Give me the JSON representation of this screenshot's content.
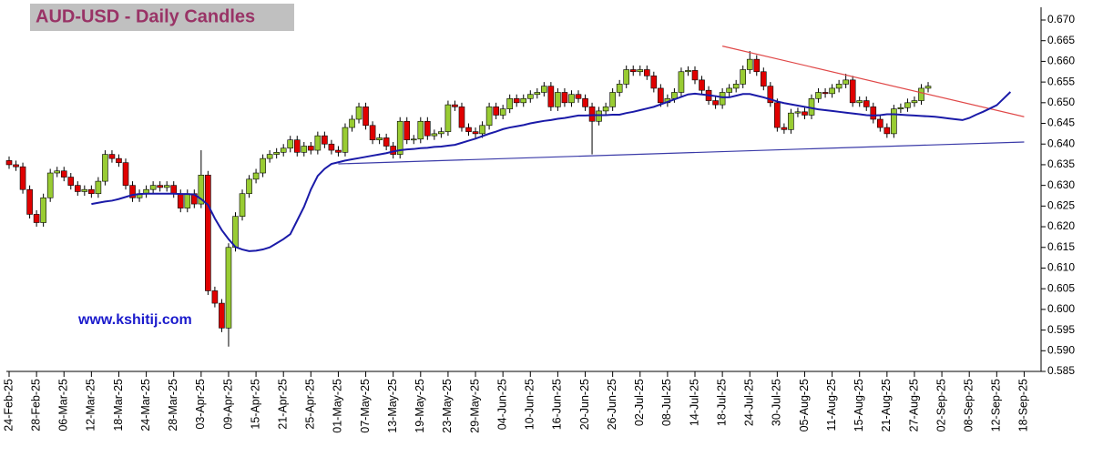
{
  "chart_data": {
    "type": "candlestick",
    "title": "AUD-USD - Daily Candles",
    "watermark": "www.kshitij.com",
    "categories": [
      "24-Feb-25",
      null,
      null,
      null,
      "28-Feb-25",
      null,
      null,
      null,
      "06-Mar-25",
      null,
      null,
      null,
      "12-Mar-25",
      null,
      null,
      null,
      "18-Mar-25",
      null,
      null,
      null,
      "24-Mar-25",
      null,
      null,
      null,
      "28-Mar-25",
      null,
      null,
      null,
      "03-Apr-25",
      null,
      null,
      null,
      "09-Apr-25",
      null,
      null,
      null,
      "15-Apr-25",
      null,
      null,
      null,
      "21-Apr-25",
      null,
      null,
      null,
      "25-Apr-25",
      null,
      null,
      null,
      "01-May-25",
      null,
      null,
      null,
      "07-May-25",
      null,
      null,
      null,
      "13-May-25",
      null,
      null,
      null,
      "19-May-25",
      null,
      null,
      null,
      "23-May-25",
      null,
      null,
      null,
      "29-May-25",
      null,
      null,
      null,
      "04-Jun-25",
      null,
      null,
      null,
      "10-Jun-25",
      null,
      null,
      null,
      "16-Jun-25",
      null,
      null,
      null,
      "20-Jun-25",
      null,
      null,
      null,
      "26-Jun-25",
      null,
      null,
      null,
      "02-Jul-25",
      null,
      null,
      null,
      "08-Jul-25",
      null,
      null,
      null,
      "14-Jul-25",
      null,
      null,
      null,
      "18-Jul-25",
      null,
      null,
      null,
      "24-Jul-25",
      null,
      null,
      null,
      "30-Jul-25",
      null,
      null,
      null,
      "05-Aug-25",
      null,
      null,
      null,
      "11-Aug-25",
      null,
      null,
      null,
      "15-Aug-25",
      null,
      null,
      null,
      "21-Aug-25",
      null,
      null,
      null,
      "27-Aug-25",
      null,
      null,
      null,
      "02-Sep-25",
      null,
      null,
      null,
      "08-Sep-25",
      null,
      null,
      null,
      "12-Sep-25",
      null,
      null,
      null,
      "18-Sep-25",
      null
    ],
    "open": [
      0.636,
      0.635,
      0.6345,
      0.629,
      0.623,
      0.621,
      0.627,
      0.633,
      0.6335,
      0.632,
      0.63,
      0.6285,
      0.629,
      0.628,
      0.631,
      0.6375,
      0.6365,
      0.6355,
      0.63,
      0.627,
      0.628,
      0.629,
      0.63,
      0.6295,
      0.63,
      0.628,
      0.6245,
      0.628,
      0.6255,
      0.6325,
      0.6045,
      0.6015,
      0.5955,
      0.615,
      0.6225,
      0.628,
      0.6315,
      0.633,
      0.6365,
      0.6375,
      0.638,
      0.639,
      0.641,
      0.638,
      0.6395,
      0.6385,
      0.642,
      0.64,
      0.6385,
      0.638,
      0.644,
      0.646,
      0.649,
      0.6445,
      0.641,
      0.6415,
      0.6395,
      0.6375,
      0.6455,
      0.641,
      0.6412,
      0.6455,
      0.642,
      0.6425,
      0.643,
      0.6495,
      0.649,
      0.644,
      0.643,
      0.6425,
      0.6445,
      0.649,
      0.647,
      0.6485,
      0.651,
      0.65,
      0.651,
      0.652,
      0.6525,
      0.654,
      0.649,
      0.6525,
      0.65,
      0.652,
      0.651,
      0.649,
      0.6455,
      0.648,
      0.649,
      0.6525,
      0.6545,
      0.658,
      0.6575,
      0.658,
      0.6565,
      0.6535,
      0.65,
      0.651,
      0.6525,
      0.6575,
      0.6578,
      0.6555,
      0.653,
      0.6505,
      0.6495,
      0.6525,
      0.6535,
      0.6545,
      0.658,
      0.6605,
      0.6575,
      0.654,
      0.65,
      0.644,
      0.6435,
      0.6475,
      0.6478,
      0.647,
      0.651,
      0.6525,
      0.6522,
      0.6535,
      0.6545,
      0.6555,
      0.65,
      0.6505,
      0.649,
      0.646,
      0.644,
      0.6425,
      0.6485,
      0.6488,
      0.65,
      0.6505,
      0.6535,
      null,
      null,
      null,
      null,
      null,
      null,
      null,
      null,
      null,
      null,
      null,
      null,
      null,
      null,
      null
    ],
    "high": [
      0.637,
      0.636,
      0.6355,
      0.63,
      0.624,
      0.628,
      0.634,
      0.6345,
      0.6345,
      0.633,
      0.631,
      0.63,
      0.63,
      0.632,
      0.6385,
      0.6385,
      0.6375,
      0.6365,
      0.631,
      0.629,
      0.63,
      0.631,
      0.631,
      0.631,
      0.631,
      0.629,
      0.629,
      0.629,
      0.6385,
      0.6335,
      0.6055,
      0.6025,
      0.616,
      0.6235,
      0.629,
      0.6325,
      0.634,
      0.6375,
      0.6385,
      0.639,
      0.64,
      0.642,
      0.642,
      0.6405,
      0.6405,
      0.643,
      0.643,
      0.641,
      0.6395,
      0.645,
      0.647,
      0.65,
      0.65,
      0.6455,
      0.6425,
      0.6425,
      0.6405,
      0.6465,
      0.6465,
      0.6422,
      0.6465,
      0.6465,
      0.6435,
      0.644,
      0.6505,
      0.6505,
      0.65,
      0.645,
      0.644,
      0.6455,
      0.65,
      0.65,
      0.6495,
      0.652,
      0.652,
      0.652,
      0.653,
      0.6535,
      0.655,
      0.655,
      0.6535,
      0.6535,
      0.653,
      0.653,
      0.652,
      0.65,
      0.649,
      0.65,
      0.6535,
      0.6555,
      0.659,
      0.659,
      0.659,
      0.659,
      0.6575,
      0.6545,
      0.652,
      0.6535,
      0.6585,
      0.6588,
      0.6588,
      0.6565,
      0.654,
      0.6515,
      0.6535,
      0.6545,
      0.6555,
      0.659,
      0.6625,
      0.6615,
      0.6585,
      0.655,
      0.651,
      0.645,
      0.6485,
      0.6488,
      0.6488,
      0.652,
      0.6535,
      0.6535,
      0.6545,
      0.6555,
      0.657,
      0.6565,
      0.6515,
      0.6515,
      0.65,
      0.647,
      0.645,
      0.6495,
      0.6498,
      0.651,
      0.6515,
      0.6545,
      0.655,
      null,
      null,
      null,
      null,
      null,
      null,
      null,
      null,
      null,
      null,
      null,
      null,
      null,
      null,
      null
    ],
    "low": [
      0.634,
      0.6335,
      0.628,
      0.622,
      0.62,
      0.62,
      0.626,
      0.632,
      0.631,
      0.629,
      0.6275,
      0.6275,
      0.627,
      0.627,
      0.63,
      0.6355,
      0.6345,
      0.629,
      0.626,
      0.626,
      0.627,
      0.628,
      0.6285,
      0.6285,
      0.627,
      0.6235,
      0.6235,
      0.6245,
      0.6245,
      0.6035,
      0.6005,
      0.5945,
      0.591,
      0.614,
      0.6215,
      0.627,
      0.6305,
      0.632,
      0.6355,
      0.6365,
      0.637,
      0.638,
      0.637,
      0.637,
      0.6375,
      0.6375,
      0.639,
      0.6375,
      0.637,
      0.637,
      0.643,
      0.645,
      0.6435,
      0.64,
      0.64,
      0.6385,
      0.6365,
      0.6365,
      0.64,
      0.64,
      0.6402,
      0.641,
      0.641,
      0.6415,
      0.642,
      0.648,
      0.643,
      0.642,
      0.6415,
      0.6415,
      0.6435,
      0.646,
      0.646,
      0.6475,
      0.649,
      0.649,
      0.65,
      0.651,
      0.6515,
      0.648,
      0.648,
      0.649,
      0.649,
      0.65,
      0.648,
      0.6375,
      0.6445,
      0.647,
      0.648,
      0.6515,
      0.6535,
      0.6565,
      0.6565,
      0.6555,
      0.6525,
      0.649,
      0.649,
      0.65,
      0.6515,
      0.6565,
      0.6545,
      0.652,
      0.6495,
      0.6485,
      0.6485,
      0.6515,
      0.6525,
      0.6535,
      0.657,
      0.6565,
      0.653,
      0.649,
      0.643,
      0.6425,
      0.6425,
      0.6465,
      0.646,
      0.646,
      0.65,
      0.6512,
      0.6512,
      0.6525,
      0.6535,
      0.649,
      0.649,
      0.648,
      0.645,
      0.643,
      0.6415,
      0.6415,
      0.6475,
      0.6478,
      0.649,
      0.6495,
      0.6525,
      null,
      null,
      null,
      null,
      null,
      null,
      null,
      null,
      null,
      null,
      null,
      null,
      null,
      null,
      null
    ],
    "close": [
      0.635,
      0.6345,
      0.629,
      0.623,
      0.621,
      0.627,
      0.633,
      0.6335,
      0.632,
      0.63,
      0.6285,
      0.629,
      0.628,
      0.631,
      0.6375,
      0.6365,
      0.6355,
      0.63,
      0.627,
      0.628,
      0.629,
      0.63,
      0.6295,
      0.63,
      0.628,
      0.6245,
      0.628,
      0.6255,
      0.6325,
      0.6045,
      0.6015,
      0.5955,
      0.615,
      0.6225,
      0.628,
      0.6315,
      0.633,
      0.6365,
      0.6375,
      0.638,
      0.639,
      0.641,
      0.638,
      0.6395,
      0.6385,
      0.642,
      0.64,
      0.6385,
      0.638,
      0.644,
      0.646,
      0.649,
      0.6445,
      0.641,
      0.6415,
      0.6395,
      0.6375,
      0.6455,
      0.641,
      0.6412,
      0.6455,
      0.642,
      0.6425,
      0.643,
      0.6495,
      0.649,
      0.644,
      0.643,
      0.6425,
      0.6445,
      0.649,
      0.647,
      0.6485,
      0.651,
      0.65,
      0.651,
      0.652,
      0.6525,
      0.654,
      0.649,
      0.6525,
      0.65,
      0.652,
      0.651,
      0.649,
      0.6455,
      0.648,
      0.649,
      0.6525,
      0.6545,
      0.658,
      0.6575,
      0.658,
      0.6565,
      0.6535,
      0.65,
      0.651,
      0.6525,
      0.6575,
      0.6578,
      0.6555,
      0.653,
      0.6505,
      0.6495,
      0.6525,
      0.6535,
      0.6545,
      0.658,
      0.6605,
      0.6575,
      0.654,
      0.65,
      0.644,
      0.6435,
      0.6475,
      0.6478,
      0.647,
      0.651,
      0.6525,
      0.6522,
      0.6535,
      0.6545,
      0.6555,
      0.65,
      0.6505,
      0.649,
      0.646,
      0.644,
      0.6425,
      0.6485,
      0.6488,
      0.65,
      0.6505,
      0.6535,
      0.654,
      null,
      null,
      null,
      null,
      null,
      null,
      null,
      null,
      null,
      null,
      null,
      null,
      null,
      null,
      null
    ],
    "up_color": "#99cc33",
    "down_color": "#e00000",
    "moving_average": {
      "color": "#1a1aa8",
      "values": [
        null,
        null,
        null,
        null,
        null,
        null,
        null,
        null,
        null,
        null,
        null,
        null,
        0.6255,
        0.6258,
        0.6261,
        0.6263,
        0.6267,
        0.6272,
        0.6277,
        0.6279,
        0.628,
        0.628,
        0.628,
        0.628,
        0.628,
        0.6279,
        0.6279,
        0.6278,
        0.6267,
        0.6253,
        0.622,
        0.6192,
        0.617,
        0.6151,
        0.6145,
        0.6141,
        0.6142,
        0.6145,
        0.615,
        0.616,
        0.617,
        0.6182,
        0.6215,
        0.6248,
        0.629,
        0.6323,
        0.634,
        0.6352,
        0.6356,
        0.636,
        0.6363,
        0.6366,
        0.6369,
        0.6372,
        0.6375,
        0.6378,
        0.6382,
        0.6385,
        0.6387,
        0.6388,
        0.639,
        0.6391,
        0.6393,
        0.6394,
        0.6396,
        0.6398,
        0.6403,
        0.6408,
        0.6413,
        0.6419,
        0.6425,
        0.643,
        0.6436,
        0.644,
        0.6443,
        0.6446,
        0.645,
        0.6453,
        0.6456,
        0.6458,
        0.6461,
        0.6463,
        0.6466,
        0.6469,
        0.6469,
        0.647,
        0.647,
        0.647,
        0.6471,
        0.6471,
        0.6475,
        0.6478,
        0.6482,
        0.6486,
        0.649,
        0.6496,
        0.6502,
        0.6508,
        0.6514,
        0.652,
        0.6522,
        0.652,
        0.6518,
        0.6516,
        0.6513,
        0.6513,
        0.6517,
        0.6521,
        0.6521,
        0.6517,
        0.6513,
        0.6508,
        0.6503,
        0.6499,
        0.6496,
        0.6493,
        0.649,
        0.6487,
        0.6484,
        0.6482,
        0.648,
        0.6478,
        0.6476,
        0.6474,
        0.6472,
        0.647,
        0.6469,
        0.647,
        0.6472,
        0.6472,
        0.6471,
        0.647,
        0.6469,
        0.6468,
        0.6467,
        0.6466,
        0.6464,
        0.6462,
        0.646,
        0.6458,
        0.6463,
        0.6471,
        0.6478,
        0.6486,
        0.6494,
        0.651,
        0.6526,
        null,
        null,
        null
      ]
    },
    "trendlines": [
      {
        "color": "#e04848",
        "x": [
          "18-Jul-25",
          "18-Sep-25"
        ],
        "values": [
          0.6637,
          0.6466
        ]
      },
      {
        "color": "#3a3aa8",
        "x": [
          "01-May-25",
          "18-Sep-25"
        ],
        "values": [
          0.6352,
          0.6405
        ]
      }
    ],
    "ylim": [
      0.585,
      0.67
    ],
    "yticks": [
      0.585,
      {
        "value": 0.59,
        "label": "0.590"
      },
      0.595,
      {
        "value": 0.6,
        "label": "0.600"
      },
      0.605,
      {
        "value": 0.61,
        "label": "0.610"
      },
      0.615,
      {
        "value": 0.62,
        "label": "0.620"
      },
      0.625,
      {
        "value": 0.63,
        "label": "0.630"
      },
      0.635,
      {
        "value": 0.64,
        "label": "0.640"
      },
      0.645,
      {
        "value": 0.65,
        "label": "0.650"
      },
      0.655,
      {
        "value": 0.66,
        "label": "0.660"
      },
      0.665,
      {
        "value": 0.67,
        "label": "0.670"
      }
    ],
    "grid": false
  }
}
